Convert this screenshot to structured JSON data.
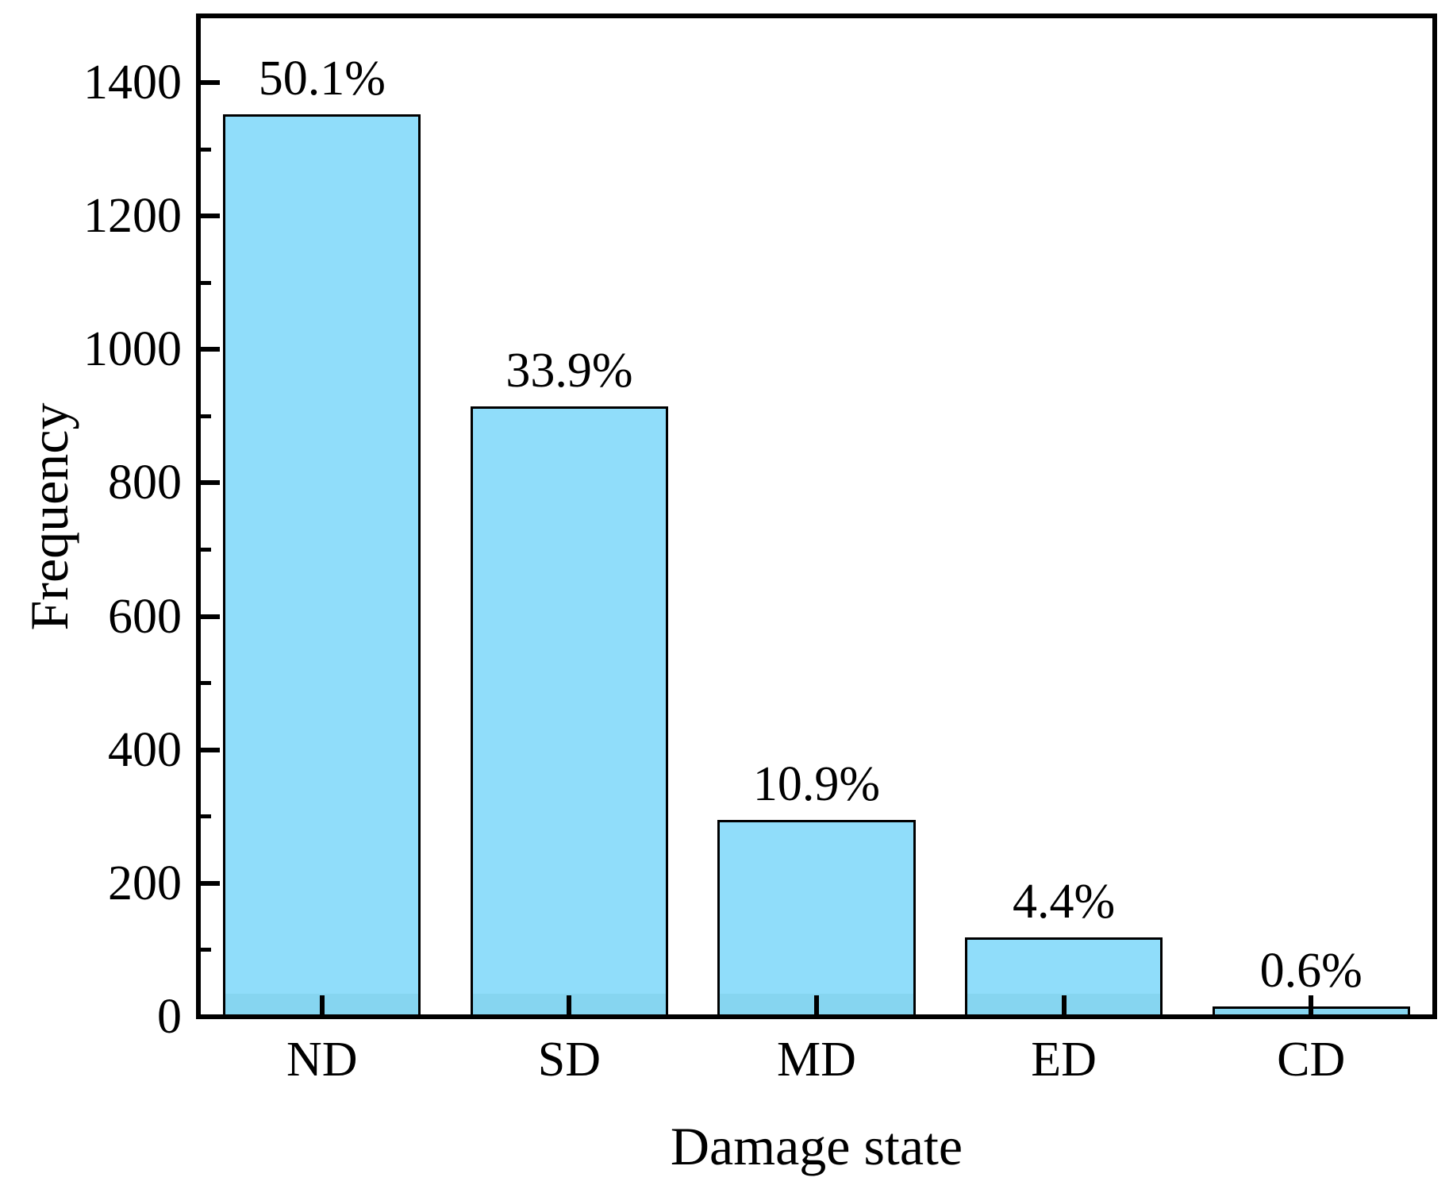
{
  "chart_data": {
    "type": "bar",
    "title": "",
    "xlabel": "Damage state",
    "ylabel": "Frequency",
    "categories": [
      "ND",
      "SD",
      "MD",
      "ED",
      "CD"
    ],
    "values": [
      1353,
      915,
      295,
      119,
      16
    ],
    "bar_labels": [
      "50.1%",
      "33.9%",
      "10.9%",
      "4.4%",
      "0.6%"
    ],
    "ylim": [
      0,
      1500
    ],
    "ytick_major_values": [
      0,
      200,
      400,
      600,
      800,
      1000,
      1200,
      1400
    ],
    "ytick_labels": [
      "0",
      "200",
      "400",
      "600",
      "800",
      "1000",
      "1200",
      "1400"
    ],
    "ytick_minor_values": [
      100,
      300,
      500,
      700,
      900,
      1100,
      1300
    ],
    "grid": false,
    "legend": "none",
    "tick_direction": "in",
    "bar_width_fraction": 0.8,
    "colors": {
      "bar_fill": "#90DDFA",
      "bar_fill_bottom_band": "#86D5F0",
      "bar_edge": "#000000",
      "axis": "#000000",
      "text": "#000000",
      "background": "#FFFFFF"
    }
  }
}
